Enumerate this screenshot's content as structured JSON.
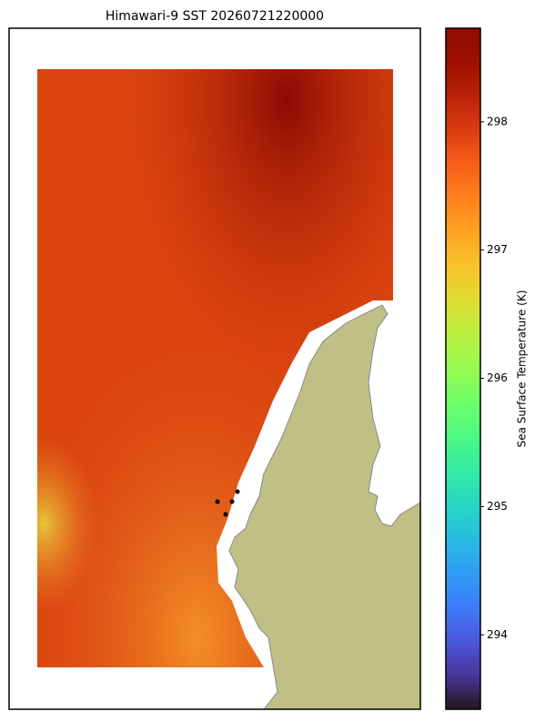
{
  "chart_data": {
    "type": "heatmap",
    "title": "Himawari-9 SST 20260721220000",
    "colorbar": {
      "label": "Sea Surface Temperature (K)",
      "colormap": "turbo",
      "lim": [
        293.42,
        298.73
      ],
      "ticks": [
        294,
        295,
        296,
        297,
        298
      ]
    }
  }
}
